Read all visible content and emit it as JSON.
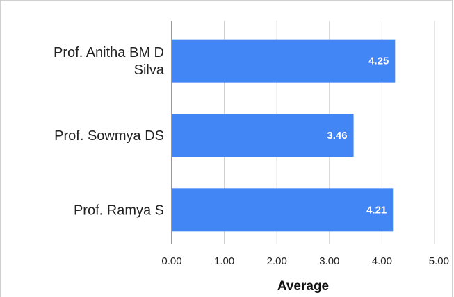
{
  "chart_data": {
    "type": "bar",
    "orientation": "horizontal",
    "categories": [
      [
        "Prof. Anitha BM D",
        "Silva"
      ],
      [
        "Prof. Sowmya DS"
      ],
      [
        "Prof. Ramya S"
      ]
    ],
    "values": [
      4.25,
      3.46,
      4.21
    ],
    "value_labels": [
      "4.25",
      "3.46",
      "4.21"
    ],
    "xlabel": "Average",
    "ylabel": "",
    "title": "",
    "xlim": [
      0,
      5
    ],
    "x_ticks": [
      "0.00",
      "1.00",
      "2.00",
      "3.00",
      "4.00",
      "5.00"
    ],
    "grid": true,
    "legend": "none",
    "bar_color": "#4285f4"
  }
}
